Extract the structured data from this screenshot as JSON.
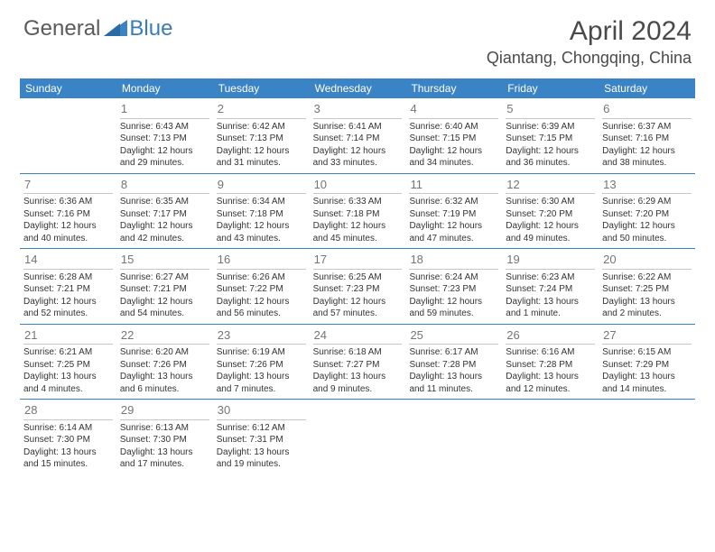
{
  "brand": {
    "part1": "General",
    "part2": "Blue"
  },
  "title": "April 2024",
  "location": "Qiantang, Chongqing, China",
  "weekdays": [
    "Sunday",
    "Monday",
    "Tuesday",
    "Wednesday",
    "Thursday",
    "Friday",
    "Saturday"
  ],
  "colors": {
    "header_bar": "#3a83c4",
    "week_underline": "#3a83c4",
    "daynum": "#757575",
    "text": "#333333",
    "logo_gray": "#5a5a5a",
    "logo_blue": "#3a7db5"
  },
  "weeks": [
    [
      {
        "n": "",
        "empty": true
      },
      {
        "n": "1",
        "sunrise": "6:43 AM",
        "sunset": "7:13 PM",
        "daylight": "12 hours and 29 minutes."
      },
      {
        "n": "2",
        "sunrise": "6:42 AM",
        "sunset": "7:13 PM",
        "daylight": "12 hours and 31 minutes."
      },
      {
        "n": "3",
        "sunrise": "6:41 AM",
        "sunset": "7:14 PM",
        "daylight": "12 hours and 33 minutes."
      },
      {
        "n": "4",
        "sunrise": "6:40 AM",
        "sunset": "7:15 PM",
        "daylight": "12 hours and 34 minutes."
      },
      {
        "n": "5",
        "sunrise": "6:39 AM",
        "sunset": "7:15 PM",
        "daylight": "12 hours and 36 minutes."
      },
      {
        "n": "6",
        "sunrise": "6:37 AM",
        "sunset": "7:16 PM",
        "daylight": "12 hours and 38 minutes."
      }
    ],
    [
      {
        "n": "7",
        "sunrise": "6:36 AM",
        "sunset": "7:16 PM",
        "daylight": "12 hours and 40 minutes."
      },
      {
        "n": "8",
        "sunrise": "6:35 AM",
        "sunset": "7:17 PM",
        "daylight": "12 hours and 42 minutes."
      },
      {
        "n": "9",
        "sunrise": "6:34 AM",
        "sunset": "7:18 PM",
        "daylight": "12 hours and 43 minutes."
      },
      {
        "n": "10",
        "sunrise": "6:33 AM",
        "sunset": "7:18 PM",
        "daylight": "12 hours and 45 minutes."
      },
      {
        "n": "11",
        "sunrise": "6:32 AM",
        "sunset": "7:19 PM",
        "daylight": "12 hours and 47 minutes."
      },
      {
        "n": "12",
        "sunrise": "6:30 AM",
        "sunset": "7:20 PM",
        "daylight": "12 hours and 49 minutes."
      },
      {
        "n": "13",
        "sunrise": "6:29 AM",
        "sunset": "7:20 PM",
        "daylight": "12 hours and 50 minutes."
      }
    ],
    [
      {
        "n": "14",
        "sunrise": "6:28 AM",
        "sunset": "7:21 PM",
        "daylight": "12 hours and 52 minutes."
      },
      {
        "n": "15",
        "sunrise": "6:27 AM",
        "sunset": "7:21 PM",
        "daylight": "12 hours and 54 minutes."
      },
      {
        "n": "16",
        "sunrise": "6:26 AM",
        "sunset": "7:22 PM",
        "daylight": "12 hours and 56 minutes."
      },
      {
        "n": "17",
        "sunrise": "6:25 AM",
        "sunset": "7:23 PM",
        "daylight": "12 hours and 57 minutes."
      },
      {
        "n": "18",
        "sunrise": "6:24 AM",
        "sunset": "7:23 PM",
        "daylight": "12 hours and 59 minutes."
      },
      {
        "n": "19",
        "sunrise": "6:23 AM",
        "sunset": "7:24 PM",
        "daylight": "13 hours and 1 minute."
      },
      {
        "n": "20",
        "sunrise": "6:22 AM",
        "sunset": "7:25 PM",
        "daylight": "13 hours and 2 minutes."
      }
    ],
    [
      {
        "n": "21",
        "sunrise": "6:21 AM",
        "sunset": "7:25 PM",
        "daylight": "13 hours and 4 minutes."
      },
      {
        "n": "22",
        "sunrise": "6:20 AM",
        "sunset": "7:26 PM",
        "daylight": "13 hours and 6 minutes."
      },
      {
        "n": "23",
        "sunrise": "6:19 AM",
        "sunset": "7:26 PM",
        "daylight": "13 hours and 7 minutes."
      },
      {
        "n": "24",
        "sunrise": "6:18 AM",
        "sunset": "7:27 PM",
        "daylight": "13 hours and 9 minutes."
      },
      {
        "n": "25",
        "sunrise": "6:17 AM",
        "sunset": "7:28 PM",
        "daylight": "13 hours and 11 minutes."
      },
      {
        "n": "26",
        "sunrise": "6:16 AM",
        "sunset": "7:28 PM",
        "daylight": "13 hours and 12 minutes."
      },
      {
        "n": "27",
        "sunrise": "6:15 AM",
        "sunset": "7:29 PM",
        "daylight": "13 hours and 14 minutes."
      }
    ],
    [
      {
        "n": "28",
        "sunrise": "6:14 AM",
        "sunset": "7:30 PM",
        "daylight": "13 hours and 15 minutes."
      },
      {
        "n": "29",
        "sunrise": "6:13 AM",
        "sunset": "7:30 PM",
        "daylight": "13 hours and 17 minutes."
      },
      {
        "n": "30",
        "sunrise": "6:12 AM",
        "sunset": "7:31 PM",
        "daylight": "13 hours and 19 minutes."
      },
      {
        "n": "",
        "empty": true
      },
      {
        "n": "",
        "empty": true
      },
      {
        "n": "",
        "empty": true
      },
      {
        "n": "",
        "empty": true
      }
    ]
  ],
  "labels": {
    "sunrise": "Sunrise:",
    "sunset": "Sunset:",
    "daylight": "Daylight:"
  }
}
